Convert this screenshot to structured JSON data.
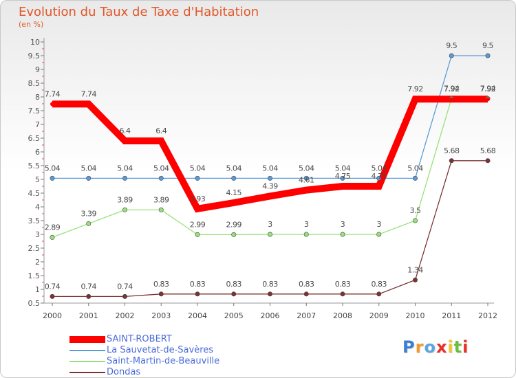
{
  "header": {
    "title": "Evolution du Taux de Taxe d'Habitation",
    "unit": "(en %)"
  },
  "logo": {
    "text": "Proxiti"
  },
  "chart_data": {
    "type": "line",
    "title": "Evolution du Taux de Taxe d'Habitation",
    "ylabel": "(en %)",
    "xlabel": "",
    "x": [
      "2000",
      "2001",
      "2002",
      "2003",
      "2004",
      "2005",
      "2006",
      "2007",
      "2008",
      "2009",
      "2010",
      "2011",
      "2012"
    ],
    "ylim": [
      0.5,
      10
    ],
    "yticks": [
      0.5,
      1,
      1.5,
      2,
      2.5,
      3,
      3.5,
      4,
      4.5,
      5,
      5.5,
      6,
      6.5,
      7,
      7.5,
      8,
      8.5,
      9,
      9.5,
      10
    ],
    "ytick_labels": [
      "0.5",
      "1",
      "1.5",
      "2",
      "2.5",
      "3",
      "3.5",
      "4",
      "4.5",
      "5",
      "5.5",
      "6",
      "6.5",
      "7",
      "7.5",
      "8",
      "8.5",
      "9",
      "9.5",
      "10"
    ],
    "grid": false,
    "legend_position": "bottom-left",
    "series": [
      {
        "name": "SAINT-ROBERT",
        "color": "#ff0000",
        "values": [
          7.74,
          7.74,
          6.4,
          6.4,
          3.93,
          4.15,
          4.39,
          4.61,
          4.75,
          4.75,
          7.92,
          7.92,
          7.92
        ],
        "labels": [
          "7.74",
          "7.74",
          "6.4",
          "6.4",
          "3.93",
          "4.15",
          "4.39",
          "4.61",
          "4.75",
          "4.75",
          "7.92",
          "7.92",
          "7.92"
        ]
      },
      {
        "name": "La Sauvetat-de-Savères",
        "color": "#5b9bd5",
        "values": [
          5.04,
          5.04,
          5.04,
          5.04,
          5.04,
          5.04,
          5.04,
          5.04,
          5.04,
          5.04,
          5.04,
          9.5,
          9.5
        ],
        "labels": [
          "5.04",
          "5.04",
          "5.04",
          "5.04",
          "5.04",
          "5.04",
          "5.04",
          "5.04",
          "5.04",
          "5.04",
          "5.04",
          "9.5",
          "9.5"
        ]
      },
      {
        "name": "Saint-Martin-de-Beauville",
        "color": "#99e07a",
        "values": [
          2.89,
          3.39,
          3.89,
          3.89,
          2.99,
          2.99,
          3,
          3,
          3,
          3,
          3.5,
          7.94,
          7.94
        ],
        "labels": [
          "2.89",
          "3.39",
          "3.89",
          "3.89",
          "2.99",
          "2.99",
          "3",
          "3",
          "3",
          "3",
          "3.5",
          "7.94",
          "7.94"
        ]
      },
      {
        "name": "Dondas",
        "color": "#7a3333",
        "values": [
          0.74,
          0.74,
          0.74,
          0.83,
          0.83,
          0.83,
          0.83,
          0.83,
          0.83,
          0.83,
          1.34,
          5.68,
          5.68
        ],
        "labels": [
          "0.74",
          "0.74",
          "0.74",
          "0.83",
          "0.83",
          "0.83",
          "0.83",
          "0.83",
          "0.83",
          "0.83",
          "1.34",
          "5.68",
          "5.68"
        ]
      }
    ]
  }
}
